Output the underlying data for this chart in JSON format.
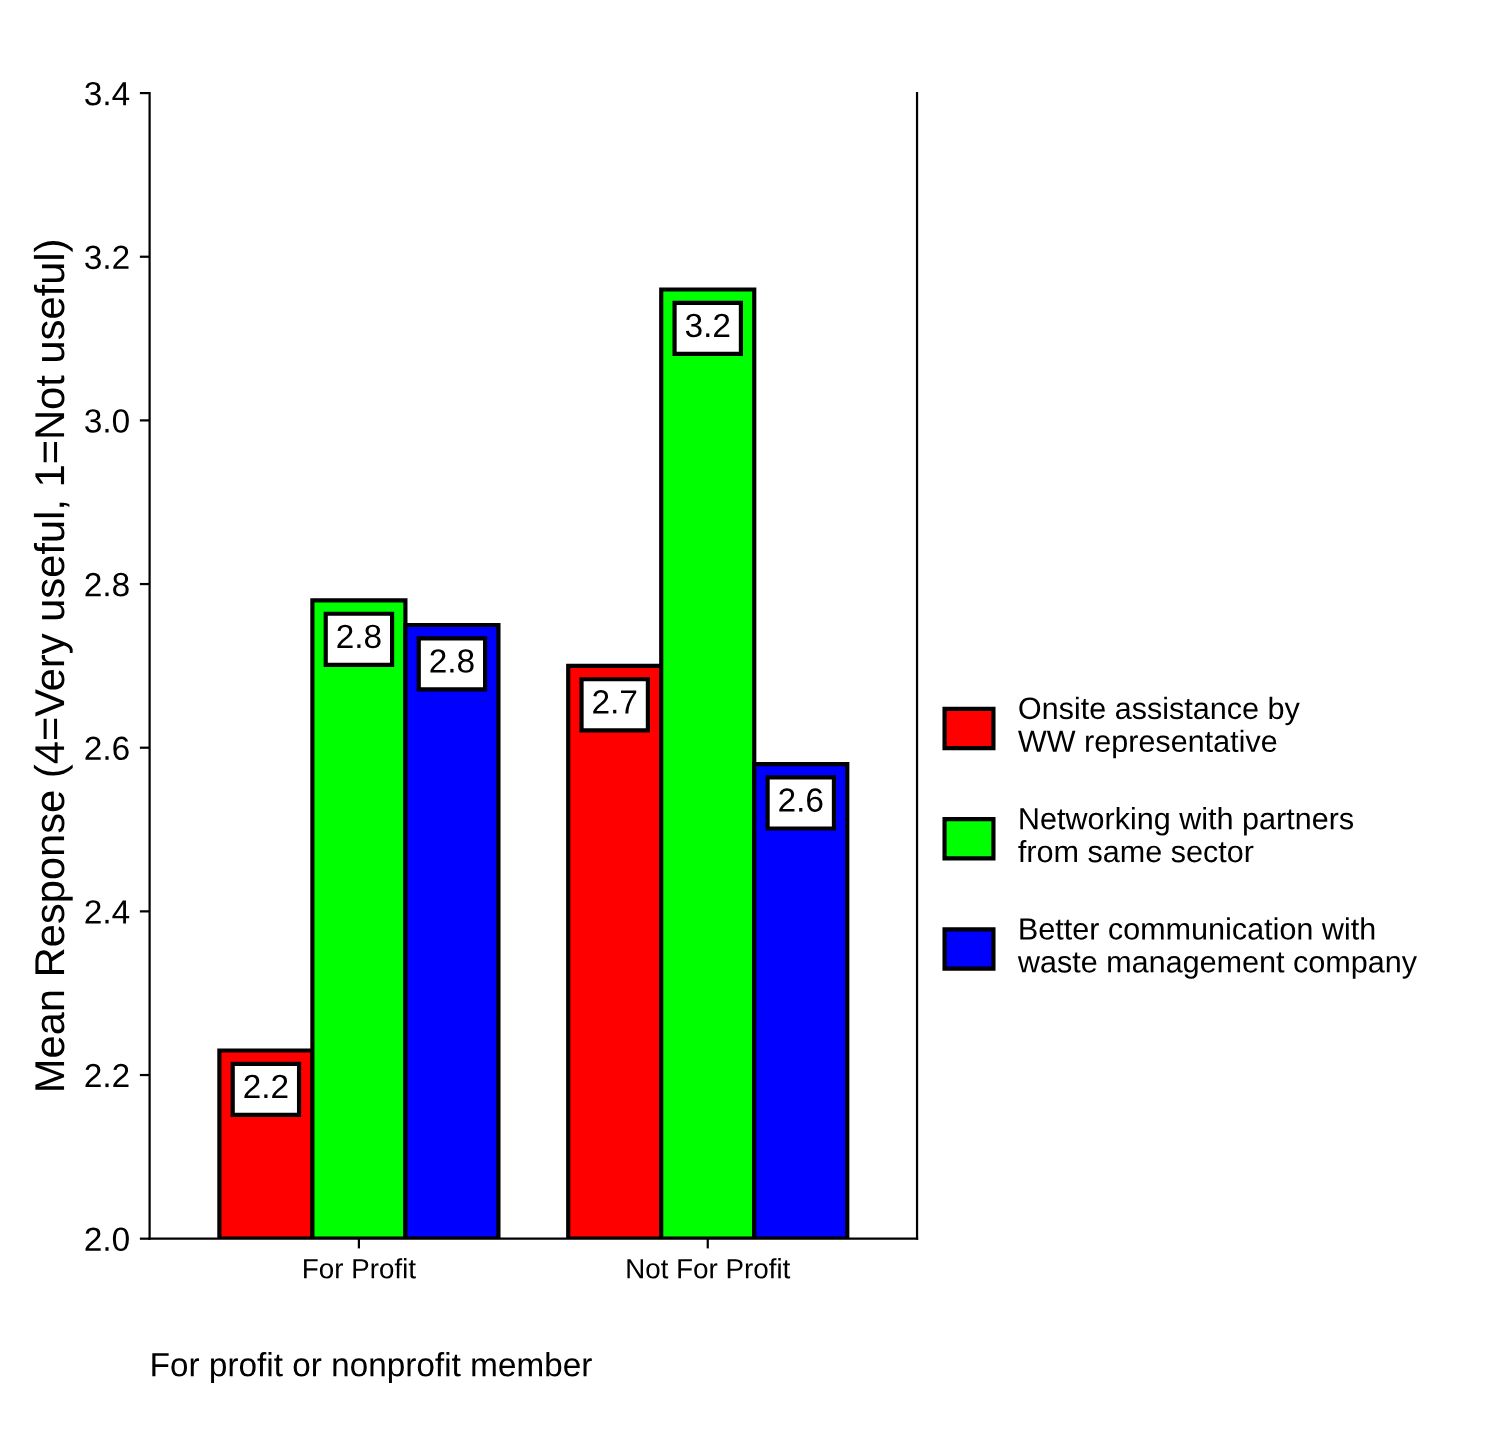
{
  "chart_data": {
    "type": "bar",
    "categories": [
      "For Profit",
      "Not For Profit"
    ],
    "xlabel": "For profit or nonprofit member",
    "ylabel": "Mean Response (4=Very useful, 1=Not useful)",
    "series": [
      {
        "name": "Onsite assistance by\nWW representative",
        "color": "#ff0000",
        "values": [
          2.23,
          2.7
        ],
        "value_labels": [
          "2.2",
          "2.7"
        ]
      },
      {
        "name": "Networking with partners\nfrom same sector",
        "color": "#00ff00",
        "values": [
          2.78,
          3.16
        ],
        "value_labels": [
          "2.8",
          "3.2"
        ]
      },
      {
        "name": "Better communication with\nwaste management company",
        "color": "#0000ff",
        "values": [
          2.75,
          2.58
        ],
        "value_labels": [
          "2.8",
          "2.6"
        ]
      }
    ],
    "ylim": [
      2.0,
      3.4
    ],
    "yticks": [
      "2.0",
      "2.2",
      "2.4",
      "2.6",
      "2.8",
      "3.0",
      "3.2",
      "3.4"
    ],
    "grid": false,
    "legend": "right"
  }
}
